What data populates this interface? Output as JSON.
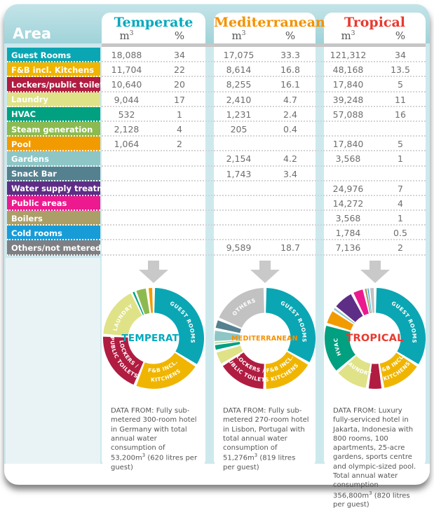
{
  "table": {
    "area_header": "Area",
    "units": {
      "m": "m",
      "sup": "3",
      "pct": "%"
    },
    "columns": [
      {
        "title": "Temperate",
        "color": "#00a9bd"
      },
      {
        "title": "Mediterranean",
        "color": "#f39200"
      },
      {
        "title": "Tropical",
        "color": "#e8392f"
      }
    ],
    "rows": [
      {
        "label": "Guest Rooms",
        "color": "#0ba6b3",
        "temperate": {
          "m3": "18,088",
          "pct": "34"
        },
        "mediterranean": {
          "m3": "17,075",
          "pct": "33.3"
        },
        "tropical": {
          "m3": "121,312",
          "pct": "34"
        }
      },
      {
        "label": "F&B incl. Kitchens",
        "color": "#f0b500",
        "temperate": {
          "m3": "11,704",
          "pct": "22"
        },
        "mediterranean": {
          "m3": "8,614",
          "pct": "16.8"
        },
        "tropical": {
          "m3": "48,168",
          "pct": "13.5"
        }
      },
      {
        "label": "Lockers/public toilets",
        "color": "#b11c41",
        "temperate": {
          "m3": "10,640",
          "pct": "20"
        },
        "mediterranean": {
          "m3": "8,255",
          "pct": "16.1"
        },
        "tropical": {
          "m3": "17,840",
          "pct": "5"
        }
      },
      {
        "label": "Laundry",
        "color": "#dfe287",
        "temperate": {
          "m3": "9,044",
          "pct": "17"
        },
        "mediterranean": {
          "m3": "2,410",
          "pct": "4.7"
        },
        "tropical": {
          "m3": "39,248",
          "pct": "11"
        }
      },
      {
        "label": "HVAC",
        "color": "#00a081",
        "temperate": {
          "m3": "532",
          "pct": "1"
        },
        "mediterranean": {
          "m3": "1,231",
          "pct": "2.4"
        },
        "tropical": {
          "m3": "57,088",
          "pct": "16"
        }
      },
      {
        "label": "Steam generation",
        "color": "#8cba50",
        "temperate": {
          "m3": "2,128",
          "pct": "4"
        },
        "mediterranean": {
          "m3": "205",
          "pct": "0.4"
        },
        "tropical": {
          "m3": "",
          "pct": ""
        }
      },
      {
        "label": "Pool",
        "color": "#f29b00",
        "temperate": {
          "m3": "1,064",
          "pct": "2"
        },
        "mediterranean": {
          "m3": "",
          "pct": ""
        },
        "tropical": {
          "m3": "17,840",
          "pct": "5"
        }
      },
      {
        "label": "Gardens",
        "color": "#8ec6c6",
        "temperate": {
          "m3": "",
          "pct": ""
        },
        "mediterranean": {
          "m3": "2,154",
          "pct": "4.2"
        },
        "tropical": {
          "m3": "3,568",
          "pct": "1"
        }
      },
      {
        "label": "Snack Bar",
        "color": "#55808f",
        "temperate": {
          "m3": "",
          "pct": ""
        },
        "mediterranean": {
          "m3": "1,743",
          "pct": "3.4"
        },
        "tropical": {
          "m3": "",
          "pct": ""
        }
      },
      {
        "label": "Water supply treatment",
        "color": "#5e2e86",
        "temperate": {
          "m3": "",
          "pct": ""
        },
        "mediterranean": {
          "m3": "",
          "pct": ""
        },
        "tropical": {
          "m3": "24,976",
          "pct": "7"
        }
      },
      {
        "label": "Public areas",
        "color": "#ec1a8e",
        "temperate": {
          "m3": "",
          "pct": ""
        },
        "mediterranean": {
          "m3": "",
          "pct": ""
        },
        "tropical": {
          "m3": "14,272",
          "pct": "4"
        }
      },
      {
        "label": "Boilers",
        "color": "#ab9e67",
        "temperate": {
          "m3": "",
          "pct": ""
        },
        "mediterranean": {
          "m3": "",
          "pct": ""
        },
        "tropical": {
          "m3": "3,568",
          "pct": "1"
        }
      },
      {
        "label": "Cold rooms",
        "color": "#189cd8",
        "temperate": {
          "m3": "",
          "pct": ""
        },
        "mediterranean": {
          "m3": "",
          "pct": ""
        },
        "tropical": {
          "m3": "1,784",
          "pct": "0.5"
        }
      },
      {
        "label": "Others/not metered",
        "color": "#7e7f83",
        "temperate": {
          "m3": "",
          "pct": ""
        },
        "mediterranean": {
          "m3": "9,589",
          "pct": "18.7"
        },
        "tropical": {
          "m3": "7,136",
          "pct": "2"
        }
      }
    ]
  },
  "charts": [
    {
      "name": "TEMPERATE",
      "center_color": "#00a9bd",
      "slices": [
        {
          "label": "Guest Rooms",
          "value": 34,
          "color": "#0ba6b3",
          "display": [
            "GUEST ROOMS"
          ]
        },
        {
          "label": "F&B incl. Kitchens",
          "value": 22,
          "color": "#f0b500",
          "display": [
            "F&B INCL.",
            "KITCHENS"
          ]
        },
        {
          "label": "Lockers/public toilets",
          "value": 20,
          "color": "#b11c41",
          "display": [
            "LOCKERS /",
            "PUBLIC TOILETS"
          ]
        },
        {
          "label": "Laundry",
          "value": 17,
          "color": "#dfe287",
          "display": [
            "LAUNDRY"
          ]
        },
        {
          "label": "HVAC",
          "value": 1,
          "color": "#00a081"
        },
        {
          "label": "Steam generation",
          "value": 4,
          "color": "#8cba50"
        },
        {
          "label": "Pool",
          "value": 2,
          "color": "#f29b00"
        }
      ]
    },
    {
      "name": "MEDITERRANEAN",
      "center_color": "#f39200",
      "slices": [
        {
          "label": "Guest Rooms",
          "value": 33.3,
          "color": "#0ba6b3",
          "display": [
            "GUEST ROOMS"
          ]
        },
        {
          "label": "F&B incl. Kitchens",
          "value": 16.8,
          "color": "#f0b500",
          "display": [
            "F&B INCL.",
            "KITCHENS"
          ]
        },
        {
          "label": "Lockers/public toilets",
          "value": 16.1,
          "color": "#b11c41",
          "display": [
            "LOCKERS /",
            "PUBLIC TOILETS"
          ]
        },
        {
          "label": "Laundry",
          "value": 4.7,
          "color": "#dfe287"
        },
        {
          "label": "HVAC",
          "value": 2.4,
          "color": "#00a081"
        },
        {
          "label": "Steam generation",
          "value": 0.4,
          "color": "#8cba50"
        },
        {
          "label": "Gardens",
          "value": 4.2,
          "color": "#8ec6c6"
        },
        {
          "label": "Snack Bar",
          "value": 3.4,
          "color": "#55808f"
        },
        {
          "label": "Others",
          "value": 18.7,
          "color": "#c2c2c2",
          "display": [
            "OTHERS"
          ]
        }
      ]
    },
    {
      "name": "TROPICAL",
      "center_color": "#e8392f",
      "slices": [
        {
          "label": "Guest Rooms",
          "value": 34,
          "color": "#0ba6b3",
          "display": [
            "GUEST ROOMS"
          ]
        },
        {
          "label": "F&B incl. Kitchens",
          "value": 13.5,
          "color": "#f0b500",
          "display": [
            "F&B INCL.",
            "KITCHENS"
          ]
        },
        {
          "label": "Lockers/public toilets",
          "value": 5,
          "color": "#b11c41"
        },
        {
          "label": "Laundry",
          "value": 11,
          "color": "#dfe287",
          "display": [
            "LAUNDRY"
          ]
        },
        {
          "label": "HVAC",
          "value": 16,
          "color": "#00a081",
          "display": [
            "HVAC"
          ]
        },
        {
          "label": "Pool",
          "value": 5,
          "color": "#f29b00"
        },
        {
          "label": "Gardens",
          "value": 1,
          "color": "#8ec6c6"
        },
        {
          "label": "Water supply treatment",
          "value": 7,
          "color": "#5e2e86"
        },
        {
          "label": "Public areas",
          "value": 4,
          "color": "#ec1a8e"
        },
        {
          "label": "Boilers",
          "value": 1,
          "color": "#ab9e67"
        },
        {
          "label": "Cold rooms",
          "value": 0.5,
          "color": "#189cd8"
        },
        {
          "label": "Others",
          "value": 2,
          "color": "#c2c2c2"
        }
      ]
    }
  ],
  "footnotes": [
    {
      "pre": "DATA FROM: Fully sub-metered 300-room hotel in Germany with total annual water consumption of 53,200m",
      "sup": "3",
      "post": " (620 litres per guest)"
    },
    {
      "pre": "DATA FROM: Fully sub-metered 270-room hotel in Lisbon, Portugal with total annual water consumption of 51,276m",
      "sup": "3",
      "post": " (819 litres per guest)"
    },
    {
      "pre": "DATA FROM: Luxury fully-serviced hotel in Jakarta, Indonesia with 800 rooms, 100 apartments, 25-acre gardens, sports centre and olympic-sized pool.  Total annual water consumption 356,800m",
      "sup": "3",
      "post": " (820 litres per guest)"
    }
  ],
  "chart_data": [
    {
      "type": "pie",
      "title": "TEMPERATE",
      "unit": "%",
      "categories": [
        "Guest Rooms",
        "F&B incl. Kitchens",
        "Lockers/public toilets",
        "Laundry",
        "HVAC",
        "Steam generation",
        "Pool"
      ],
      "values": [
        34,
        22,
        20,
        17,
        1,
        4,
        2
      ]
    },
    {
      "type": "pie",
      "title": "MEDITERRANEAN",
      "unit": "%",
      "categories": [
        "Guest Rooms",
        "F&B incl. Kitchens",
        "Lockers/public toilets",
        "Laundry",
        "HVAC",
        "Steam generation",
        "Gardens",
        "Snack Bar",
        "Others/not metered"
      ],
      "values": [
        33.3,
        16.8,
        16.1,
        4.7,
        2.4,
        0.4,
        4.2,
        3.4,
        18.7
      ]
    },
    {
      "type": "pie",
      "title": "TROPICAL",
      "unit": "%",
      "categories": [
        "Guest Rooms",
        "F&B incl. Kitchens",
        "Lockers/public toilets",
        "Laundry",
        "HVAC",
        "Pool",
        "Gardens",
        "Water supply treatment",
        "Public areas",
        "Boilers",
        "Cold rooms",
        "Others/not metered"
      ],
      "values": [
        34,
        13.5,
        5,
        11,
        16,
        5,
        1,
        7,
        4,
        1,
        0.5,
        2
      ]
    }
  ]
}
